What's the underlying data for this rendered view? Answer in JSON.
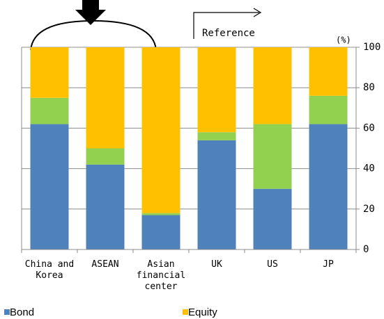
{
  "chart_data": {
    "type": "stacked_bar",
    "annotations": [
      "Reference",
      "(%)"
    ],
    "categories": [
      "China and Korea",
      "ASEAN",
      "Asian financial center",
      "UK",
      "US",
      "JP"
    ],
    "series": [
      {
        "name": "Bond",
        "color": "#4f81bd",
        "values": [
          62,
          42,
          17,
          54,
          30,
          62
        ]
      },
      {
        "name": null,
        "color": "#92d050",
        "values": [
          13,
          8,
          1,
          4,
          32,
          14
        ]
      },
      {
        "name": "Equity",
        "color": "#ffc000",
        "values": [
          25,
          50,
          82,
          42,
          38,
          24
        ]
      }
    ],
    "ylim": [
      0,
      100
    ],
    "yticks": [
      0,
      20,
      40,
      60,
      80,
      100
    ],
    "grid": true,
    "axis_side": "right"
  }
}
